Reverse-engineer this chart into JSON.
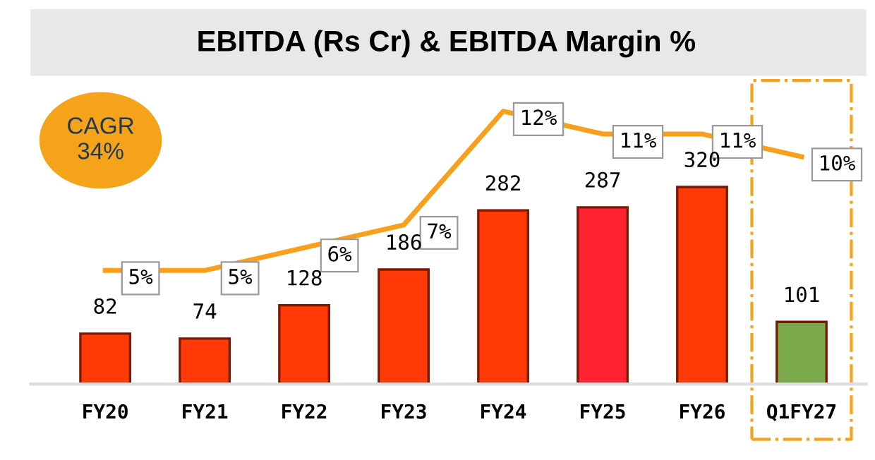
{
  "chart_data": {
    "type": "bar",
    "title": "EBITDA (Rs Cr) & EBITDA Margin %",
    "categories": [
      "FY20",
      "FY21",
      "FY22",
      "FY23",
      "FY24",
      "FY25",
      "FY26",
      "Q1FY27"
    ],
    "series": [
      {
        "colors": [
          "#ff3a06",
          "#ff3a06",
          "#ff3a06",
          "#ff3a06",
          "#ff3a06",
          "#ff2230",
          "#ff3a06",
          "#7ba84a"
        ],
        "values": [
          82,
          74,
          128,
          186,
          282,
          287,
          320,
          101
        ],
        "value_labels": [
          "82",
          "74",
          "128",
          "186",
          "282",
          "287",
          "320",
          "101"
        ]
      },
      {
        "type": "line",
        "axis": "y2",
        "color": "#f8a01c",
        "values": [
          5,
          5,
          6,
          7,
          12,
          11,
          11,
          10
        ],
        "value_labels": [
          "5%",
          "5%",
          "6%",
          "7%",
          "12%",
          "11%",
          "11%",
          "10%"
        ]
      }
    ],
    "tick_labels": "x",
    "grid": false,
    "legend": false,
    "marker": "none",
    "line_style": "solid",
    "annotations": [
      "CAGR\n34%"
    ]
  }
}
